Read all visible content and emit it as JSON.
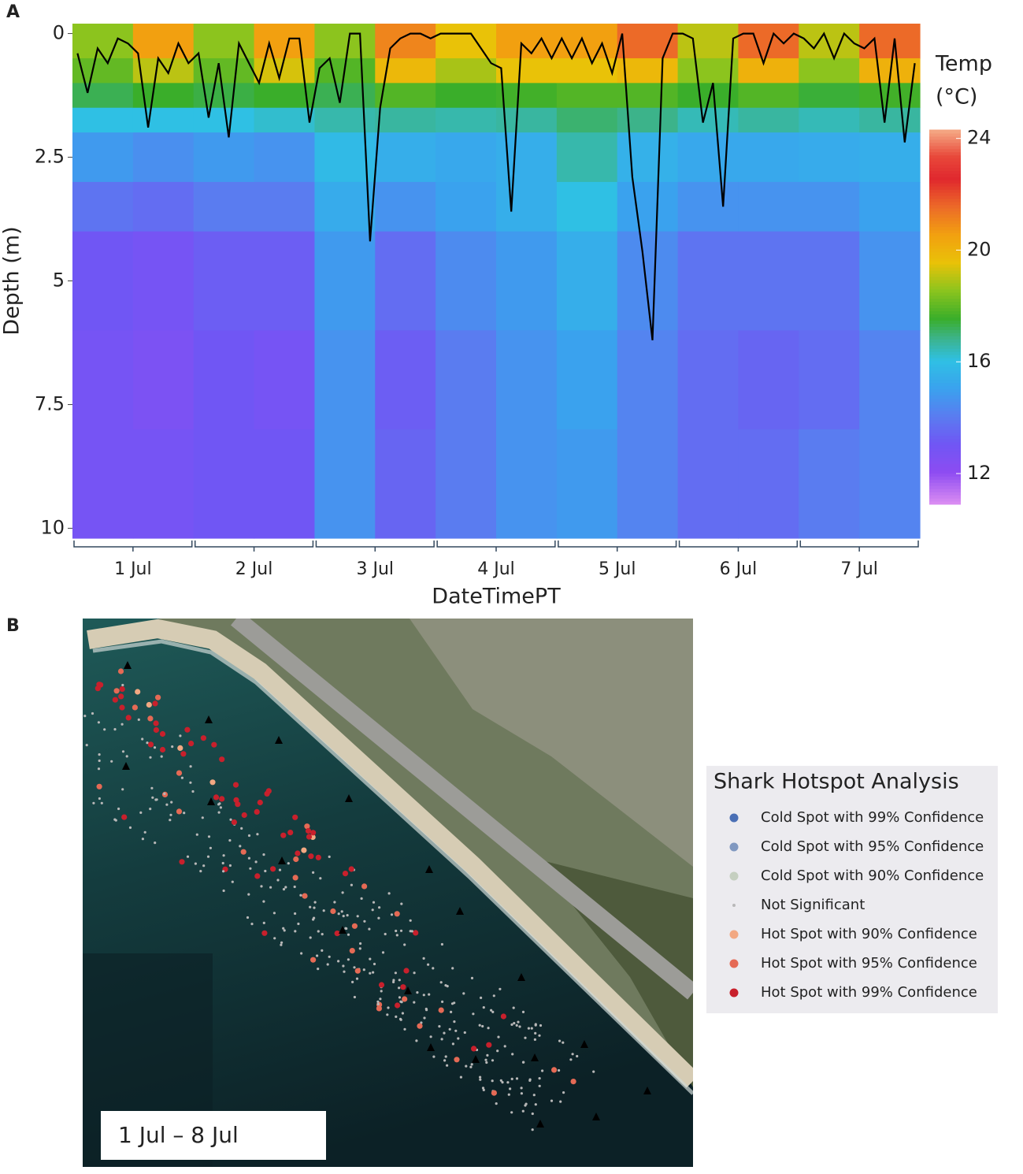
{
  "chart_data": [
    {
      "type": "heatmap",
      "panel_label": "A",
      "xlabel": "DateTimePT",
      "ylabel": "Depth (m)",
      "categories": [
        "1 Jul",
        "2 Jul",
        "3 Jul",
        "4 Jul",
        "5 Jul",
        "6 Jul",
        "7 Jul"
      ],
      "xlim": [
        0.5,
        7.5
      ],
      "ylim": [
        -0.2,
        10.2
      ],
      "yticks": [
        0,
        2.5,
        5,
        7.5,
        10
      ],
      "depth_bins": [
        0,
        0.5,
        1,
        1.5,
        2,
        3,
        4,
        6,
        8,
        10.2
      ],
      "temperature": [
        [
          18.5,
          18,
          17.2,
          16,
          14.8,
          13.8,
          13,
          12.8,
          12.8
        ],
        [
          20.5,
          19,
          17.5,
          16,
          14.5,
          13.6,
          12.8,
          12.6,
          12.8
        ],
        [
          18.5,
          18,
          17.3,
          16,
          14.8,
          14,
          13.2,
          13,
          13
        ],
        [
          20.5,
          19.3,
          17.5,
          16.2,
          14.6,
          14,
          13.2,
          12.8,
          13
        ],
        [
          18.5,
          17.8,
          17.2,
          16.5,
          15.8,
          15.3,
          14.8,
          14.6,
          14.6
        ],
        [
          21,
          19.8,
          17.8,
          16.6,
          15.4,
          14.6,
          13.6,
          13.2,
          13.4
        ],
        [
          19.5,
          18.8,
          17.5,
          16.5,
          15.2,
          15,
          14.4,
          14,
          14
        ],
        [
          20.5,
          19.5,
          17.6,
          16.6,
          15.4,
          15.4,
          14.8,
          14.6,
          14.6
        ],
        [
          20.5,
          19.5,
          17.8,
          17,
          16.5,
          16,
          15.4,
          15,
          14.8
        ],
        [
          21.5,
          19.8,
          17.8,
          16.8,
          15.5,
          15,
          14.4,
          14.2,
          14.2
        ],
        [
          19,
          18.5,
          17.5,
          16.4,
          15.2,
          14.6,
          13.8,
          13.6,
          13.6
        ],
        [
          21.5,
          20,
          17.8,
          16.6,
          15.2,
          14.6,
          13.8,
          13.4,
          13.6
        ],
        [
          19,
          18.5,
          17.4,
          16.4,
          15.3,
          14.6,
          13.8,
          13.6,
          14
        ],
        [
          21.5,
          20,
          17.6,
          16.6,
          15.4,
          15,
          14.6,
          14.2,
          14.2
        ]
      ],
      "depth_line": {
        "color": "#000000",
        "values": [
          0.4,
          1.2,
          0.3,
          0.6,
          0.1,
          0.2,
          0.4,
          1.9,
          0.5,
          0.8,
          0.2,
          0.6,
          0.4,
          1.7,
          0.6,
          2.1,
          0.2,
          0.6,
          1.0,
          0.2,
          0.9,
          0.1,
          0.1,
          1.8,
          0.7,
          0.5,
          1.4,
          0,
          0,
          4.2,
          1.5,
          0.3,
          0.1,
          0,
          0,
          0.1,
          0,
          0,
          0,
          0,
          0.3,
          0.6,
          0.7,
          3.6,
          0.2,
          0.4,
          0.1,
          0.5,
          0.1,
          0.5,
          0.1,
          0.6,
          0.2,
          0.8,
          0,
          2.9,
          4.4,
          6.2,
          0.5,
          0,
          0,
          0.1,
          1.8,
          1.0,
          3.5,
          0.1,
          0,
          0,
          0.6,
          0,
          0.2,
          0,
          0.1,
          0.3,
          0,
          0.5,
          0,
          0.2,
          0.3,
          0.1,
          1.8,
          0.1,
          2.2,
          0.6
        ]
      },
      "colorbar_title": [
        "Temp",
        "(°C)"
      ],
      "clim": [
        10.9,
        24.3
      ],
      "cticks": [
        12,
        16,
        20,
        24
      ],
      "colorscale": [
        [
          10.9,
          "#d98bf2"
        ],
        [
          12,
          "#8d4cf2"
        ],
        [
          13,
          "#7056f4"
        ],
        [
          14,
          "#5a7cf0"
        ],
        [
          15,
          "#3aa2ee"
        ],
        [
          16,
          "#2fc0e4"
        ],
        [
          16.8,
          "#3cb38a"
        ],
        [
          17.5,
          "#3aae2a"
        ],
        [
          18.5,
          "#8cc41e"
        ],
        [
          19.5,
          "#e9c208"
        ],
        [
          20.5,
          "#f2a010"
        ],
        [
          21.5,
          "#ec6a28"
        ],
        [
          22.5,
          "#e0282e"
        ],
        [
          23.3,
          "#e8483a"
        ],
        [
          24.3,
          "#f6b08a"
        ]
      ]
    },
    {
      "type": "map",
      "panel_label": "B",
      "date_range": "1 Jul – 8 Jul",
      "legend_title": "Shark Hotspot Analysis",
      "legend": [
        {
          "name": "Cold Spot with 99% Confidence",
          "color": "#4a6fb5"
        },
        {
          "name": "Cold Spot with 95% Confidence",
          "color": "#8098c0"
        },
        {
          "name": "Cold Spot with 90% Confidence",
          "color": "#c5cfc0"
        },
        {
          "name": "Not Significant",
          "color": "#b8b8b8"
        },
        {
          "name": "Hot Spot with 90% Confidence",
          "color": "#f2a882"
        },
        {
          "name": "Hot Spot with 95% Confidence",
          "color": "#e56a55"
        },
        {
          "name": "Hot Spot with 99% Confidence",
          "color": "#c8202c"
        }
      ]
    }
  ]
}
